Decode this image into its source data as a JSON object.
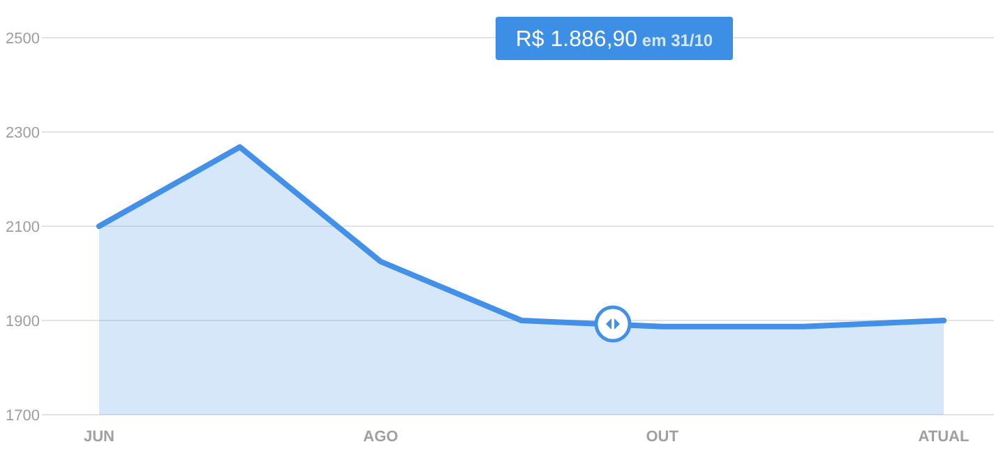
{
  "chart_data": {
    "type": "area",
    "categories": [
      "JUN",
      null,
      "AGO",
      null,
      "OUT",
      null,
      "ATUAL"
    ],
    "series": [
      {
        "color": "#4390e8",
        "values": [
          2100,
          2268,
          2025,
          1900,
          1887,
          1887,
          1900
        ]
      }
    ],
    "ylim": [
      1700,
      2500
    ],
    "yticks": [
      1700,
      1900,
      2100,
      2300,
      2500
    ],
    "grid": "y",
    "marker": "none",
    "annotations": [
      "R$ 1.886,90 em 31/10"
    ]
  }
}
